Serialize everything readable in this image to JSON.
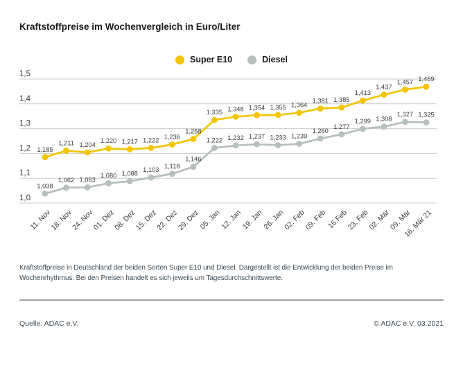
{
  "title": "Kraftstoffpreise im Wochenvergleich in Euro/Liter",
  "legend": {
    "items": [
      {
        "label": "Super E10",
        "color": "#f2c500"
      },
      {
        "label": "Diesel",
        "color": "#b6bebe"
      }
    ]
  },
  "chart_data": {
    "type": "line",
    "title": "Kraftstoffpreise im Wochenvergleich in Euro/Liter",
    "categories": [
      "11. Nov",
      "18. Nov",
      "24. Nov",
      "01. Dez",
      "08. Dez",
      "15. Dez",
      "22. Dez",
      "29. Dez",
      "05. Jan",
      "12. Jan",
      "19. Jan",
      "26. Jan",
      "02. Feb",
      "09. Feb",
      "16.Feb",
      "23. Feb",
      "02. Mär",
      "09. Mär",
      "16. Mär 21"
    ],
    "series": [
      {
        "name": "Super E10",
        "color": "#f2c500",
        "values": [
          1.185,
          1.211,
          1.204,
          1.22,
          1.217,
          1.222,
          1.236,
          1.258,
          1.335,
          1.348,
          1.354,
          1.355,
          1.364,
          1.381,
          1.385,
          1.413,
          1.437,
          1.457,
          1.469
        ]
      },
      {
        "name": "Diesel",
        "color": "#b6bebe",
        "values": [
          1.038,
          1.062,
          1.063,
          1.08,
          1.088,
          1.103,
          1.118,
          1.146,
          1.222,
          1.232,
          1.237,
          1.233,
          1.239,
          1.26,
          1.277,
          1.299,
          1.308,
          1.327,
          1.325
        ]
      }
    ],
    "ylim": [
      1.0,
      1.5
    ],
    "yticks": [
      1.0,
      1.1,
      1.2,
      1.3,
      1.4,
      1.5
    ],
    "grid": true,
    "legend_position": "top-center",
    "value_labels": true,
    "value_label_decimals": 3,
    "ytick_decimals": 1,
    "decimal_separator": ",",
    "xlabel": "",
    "ylabel": "Euro/Liter"
  },
  "footer": {
    "description": "Kraftstoffpreise in Deutschland der beiden Sorten Super E10 und Diesel. Dargestellt ist die Entwicklung der beiden Preise im Wochenrhythmus. Bei den Preisen handelt es sich jeweils um Tagesdurchschnittswerte.",
    "source": "Quelle: ADAC e.V.",
    "copyright": "© ADAC e.V. 03.2021"
  }
}
